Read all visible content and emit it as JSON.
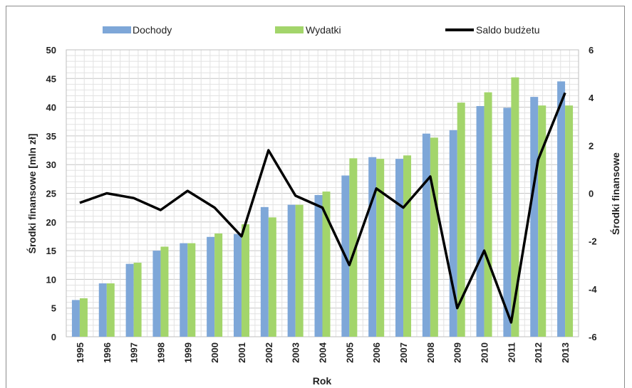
{
  "chart_data": {
    "type": "bar",
    "categories": [
      "1995",
      "1996",
      "1997",
      "1998",
      "1999",
      "2000",
      "2001",
      "2002",
      "2003",
      "2004",
      "2005",
      "2006",
      "2007",
      "2008",
      "2009",
      "2010",
      "2011",
      "2012",
      "2013"
    ],
    "series": [
      {
        "name": "Dochody",
        "type": "bar",
        "axis": "left",
        "color": "#7ea7d8",
        "values": [
          6.4,
          9.3,
          12.7,
          15.0,
          16.3,
          17.4,
          17.9,
          22.6,
          23.0,
          24.7,
          28.1,
          31.3,
          31.0,
          35.4,
          36.0,
          40.2,
          39.9,
          41.8,
          44.5
        ]
      },
      {
        "name": "Wydatki",
        "type": "bar",
        "axis": "left",
        "color": "#a3d56b",
        "values": [
          6.7,
          9.3,
          12.9,
          15.7,
          16.3,
          18.0,
          19.6,
          20.8,
          23.0,
          25.3,
          31.1,
          31.0,
          31.6,
          34.7,
          40.8,
          42.6,
          45.2,
          40.3,
          40.3
        ]
      },
      {
        "name": "Saldo budżetu",
        "type": "line",
        "axis": "right",
        "color": "#000000",
        "values": [
          -0.4,
          0.0,
          -0.2,
          -0.7,
          0.1,
          -0.6,
          -1.8,
          1.8,
          -0.1,
          -0.6,
          -3.0,
          0.2,
          -0.6,
          0.7,
          -4.8,
          -2.4,
          -5.4,
          1.4,
          4.2
        ]
      }
    ],
    "xlabel": "Rok",
    "ylabel": "Środki finansowe [mln zł]",
    "y2label": "Środki finansowe",
    "ylim": [
      0,
      50
    ],
    "y2lim": [
      -6,
      6
    ],
    "yticks": [
      "0",
      "5",
      "10",
      "15",
      "20",
      "25",
      "30",
      "35",
      "40",
      "45",
      "50"
    ],
    "y2ticks": [
      "-6",
      "-4",
      "-2",
      "0",
      "2",
      "4",
      "6"
    ],
    "grid": true,
    "legend_position": "top"
  }
}
